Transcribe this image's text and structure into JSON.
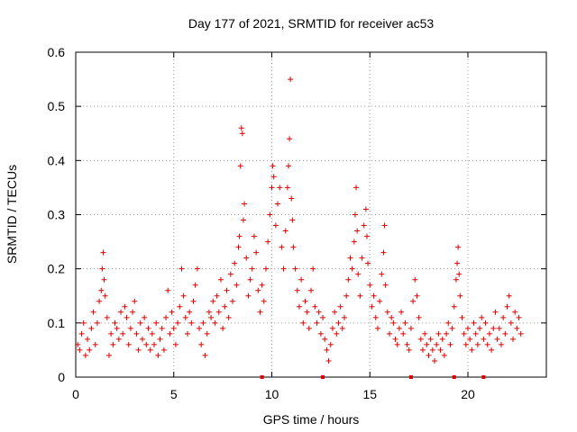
{
  "chart_data": {
    "type": "scatter",
    "title": "Day 177 of 2021, SRMTID for receiver ac53",
    "xlabel": "GPS time / hours",
    "ylabel": "SRMTID / TECUs",
    "xlim": [
      0,
      24
    ],
    "ylim": [
      0,
      0.6
    ],
    "xticks": [
      0,
      5,
      10,
      15,
      20
    ],
    "yticks": [
      0,
      0.1,
      0.2,
      0.3,
      0.4,
      0.5,
      0.6
    ],
    "xtick_labels": [
      "0",
      "5",
      "10",
      "15",
      "20"
    ],
    "ytick_labels": [
      "0",
      "0.1",
      "0.2",
      "0.3",
      "0.4",
      "0.5",
      "0.6"
    ],
    "grid": true,
    "marker": "+",
    "color": "#e00000",
    "series": [
      {
        "name": "SRMTID",
        "points": [
          [
            0.1,
            0.06
          ],
          [
            0.2,
            0.05
          ],
          [
            0.3,
            0.08
          ],
          [
            0.4,
            0.1
          ],
          [
            0.5,
            0.04
          ],
          [
            0.6,
            0.07
          ],
          [
            0.7,
            0.05
          ],
          [
            0.8,
            0.09
          ],
          [
            0.9,
            0.12
          ],
          [
            1.0,
            0.06
          ],
          [
            1.1,
            0.1
          ],
          [
            1.2,
            0.14
          ],
          [
            1.3,
            0.16
          ],
          [
            1.35,
            0.2
          ],
          [
            1.4,
            0.23
          ],
          [
            1.45,
            0.18
          ],
          [
            1.5,
            0.15
          ],
          [
            1.6,
            0.11
          ],
          [
            1.7,
            0.04
          ],
          [
            1.8,
            0.08
          ],
          [
            1.9,
            0.06
          ],
          [
            2.0,
            0.1
          ],
          [
            2.1,
            0.09
          ],
          [
            2.2,
            0.07
          ],
          [
            2.3,
            0.12
          ],
          [
            2.4,
            0.08
          ],
          [
            2.5,
            0.13
          ],
          [
            2.6,
            0.11
          ],
          [
            2.7,
            0.06
          ],
          [
            2.8,
            0.09
          ],
          [
            2.9,
            0.12
          ],
          [
            3.0,
            0.14
          ],
          [
            3.1,
            0.08
          ],
          [
            3.2,
            0.05
          ],
          [
            3.3,
            0.1
          ],
          [
            3.4,
            0.07
          ],
          [
            3.5,
            0.11
          ],
          [
            3.6,
            0.06
          ],
          [
            3.7,
            0.09
          ],
          [
            3.8,
            0.05
          ],
          [
            3.9,
            0.08
          ],
          [
            4.0,
            0.06
          ],
          [
            4.1,
            0.1
          ],
          [
            4.2,
            0.04
          ],
          [
            4.3,
            0.07
          ],
          [
            4.4,
            0.09
          ],
          [
            4.5,
            0.05
          ],
          [
            4.6,
            0.11
          ],
          [
            4.7,
            0.16
          ],
          [
            4.8,
            0.08
          ],
          [
            4.9,
            0.12
          ],
          [
            5.0,
            0.09
          ],
          [
            5.1,
            0.06
          ],
          [
            5.2,
            0.1
          ],
          [
            5.3,
            0.13
          ],
          [
            5.4,
            0.2
          ],
          [
            5.5,
            0.15
          ],
          [
            5.6,
            0.11
          ],
          [
            5.7,
            0.08
          ],
          [
            5.8,
            0.12
          ],
          [
            5.9,
            0.1
          ],
          [
            6.0,
            0.14
          ],
          [
            6.1,
            0.17
          ],
          [
            6.2,
            0.2
          ],
          [
            6.3,
            0.09
          ],
          [
            6.4,
            0.06
          ],
          [
            6.5,
            0.1
          ],
          [
            6.6,
            0.04
          ],
          [
            6.7,
            0.08
          ],
          [
            6.8,
            0.12
          ],
          [
            6.9,
            0.11
          ],
          [
            7.0,
            0.14
          ],
          [
            7.1,
            0.1
          ],
          [
            7.2,
            0.15
          ],
          [
            7.3,
            0.12
          ],
          [
            7.4,
            0.18
          ],
          [
            7.5,
            0.09
          ],
          [
            7.6,
            0.13
          ],
          [
            7.7,
            0.16
          ],
          [
            7.8,
            0.11
          ],
          [
            7.9,
            0.19
          ],
          [
            8.0,
            0.14
          ],
          [
            8.1,
            0.21
          ],
          [
            8.2,
            0.17
          ],
          [
            8.3,
            0.24
          ],
          [
            8.35,
            0.26
          ],
          [
            8.4,
            0.39
          ],
          [
            8.45,
            0.46
          ],
          [
            8.5,
            0.45
          ],
          [
            8.55,
            0.29
          ],
          [
            8.6,
            0.32
          ],
          [
            8.7,
            0.22
          ],
          [
            8.8,
            0.15
          ],
          [
            8.9,
            0.18
          ],
          [
            9.0,
            0.2
          ],
          [
            9.1,
            0.26
          ],
          [
            9.2,
            0.23
          ],
          [
            9.3,
            0.16
          ],
          [
            9.4,
            0.12
          ],
          [
            9.5,
            0.17
          ],
          [
            9.6,
            0.14
          ],
          [
            9.7,
            0.2
          ],
          [
            9.8,
            0.25
          ],
          [
            9.9,
            0.3
          ],
          [
            10.0,
            0.35
          ],
          [
            10.05,
            0.39
          ],
          [
            10.1,
            0.37
          ],
          [
            10.2,
            0.28
          ],
          [
            10.3,
            0.32
          ],
          [
            10.4,
            0.35
          ],
          [
            10.5,
            0.24
          ],
          [
            10.6,
            0.2
          ],
          [
            10.7,
            0.27
          ],
          [
            10.8,
            0.35
          ],
          [
            10.85,
            0.39
          ],
          [
            10.9,
            0.44
          ],
          [
            10.95,
            0.55
          ],
          [
            11.0,
            0.33
          ],
          [
            11.05,
            0.29
          ],
          [
            11.1,
            0.24
          ],
          [
            11.2,
            0.2
          ],
          [
            11.3,
            0.16
          ],
          [
            11.4,
            0.13
          ],
          [
            11.5,
            0.18
          ],
          [
            11.6,
            0.1
          ],
          [
            11.7,
            0.14
          ],
          [
            11.8,
            0.12
          ],
          [
            11.9,
            0.09
          ],
          [
            12.0,
            0.16
          ],
          [
            12.1,
            0.2
          ],
          [
            12.2,
            0.13
          ],
          [
            12.3,
            0.1
          ],
          [
            12.4,
            0.12
          ],
          [
            12.5,
            0.08
          ],
          [
            12.6,
            0.11
          ],
          [
            12.7,
            0.07
          ],
          [
            12.8,
            0.05
          ],
          [
            12.9,
            0.03
          ],
          [
            13.0,
            0.06
          ],
          [
            13.1,
            0.09
          ],
          [
            13.2,
            0.12
          ],
          [
            13.3,
            0.08
          ],
          [
            13.4,
            0.1
          ],
          [
            13.5,
            0.13
          ],
          [
            13.6,
            0.09
          ],
          [
            13.7,
            0.11
          ],
          [
            13.8,
            0.15
          ],
          [
            13.9,
            0.18
          ],
          [
            14.0,
            0.22
          ],
          [
            14.1,
            0.2
          ],
          [
            14.2,
            0.25
          ],
          [
            14.25,
            0.3
          ],
          [
            14.3,
            0.35
          ],
          [
            14.35,
            0.27
          ],
          [
            14.4,
            0.19
          ],
          [
            14.5,
            0.15
          ],
          [
            14.6,
            0.22
          ],
          [
            14.7,
            0.28
          ],
          [
            14.8,
            0.31
          ],
          [
            14.85,
            0.26
          ],
          [
            14.9,
            0.21
          ],
          [
            15.0,
            0.17
          ],
          [
            15.1,
            0.13
          ],
          [
            15.2,
            0.15
          ],
          [
            15.3,
            0.11
          ],
          [
            15.4,
            0.09
          ],
          [
            15.5,
            0.14
          ],
          [
            15.6,
            0.19
          ],
          [
            15.7,
            0.23
          ],
          [
            15.75,
            0.28
          ],
          [
            15.8,
            0.17
          ],
          [
            15.9,
            0.12
          ],
          [
            16.0,
            0.08
          ],
          [
            16.1,
            0.11
          ],
          [
            16.2,
            0.1
          ],
          [
            16.3,
            0.07
          ],
          [
            16.4,
            0.06
          ],
          [
            16.5,
            0.09
          ],
          [
            16.6,
            0.12
          ],
          [
            16.7,
            0.08
          ],
          [
            16.8,
            0.1
          ],
          [
            16.9,
            0.06
          ],
          [
            17.0,
            0.05
          ],
          [
            17.1,
            0.09
          ],
          [
            17.2,
            0.14
          ],
          [
            17.3,
            0.18
          ],
          [
            17.4,
            0.15
          ],
          [
            17.5,
            0.11
          ],
          [
            17.6,
            0.07
          ],
          [
            17.7,
            0.05
          ],
          [
            17.8,
            0.08
          ],
          [
            17.9,
            0.06
          ],
          [
            18.0,
            0.04
          ],
          [
            18.1,
            0.07
          ],
          [
            18.2,
            0.05
          ],
          [
            18.3,
            0.03
          ],
          [
            18.4,
            0.06
          ],
          [
            18.5,
            0.08
          ],
          [
            18.6,
            0.05
          ],
          [
            18.7,
            0.07
          ],
          [
            18.8,
            0.04
          ],
          [
            18.9,
            0.08
          ],
          [
            19.0,
            0.1
          ],
          [
            19.1,
            0.06
          ],
          [
            19.2,
            0.09
          ],
          [
            19.3,
            0.13
          ],
          [
            19.4,
            0.18
          ],
          [
            19.45,
            0.21
          ],
          [
            19.5,
            0.24
          ],
          [
            19.55,
            0.19
          ],
          [
            19.6,
            0.15
          ],
          [
            19.7,
            0.11
          ],
          [
            19.8,
            0.08
          ],
          [
            19.9,
            0.06
          ],
          [
            20.0,
            0.09
          ],
          [
            20.1,
            0.07
          ],
          [
            20.2,
            0.05
          ],
          [
            20.3,
            0.1
          ],
          [
            20.4,
            0.08
          ],
          [
            20.5,
            0.06
          ],
          [
            20.6,
            0.09
          ],
          [
            20.7,
            0.11
          ],
          [
            20.8,
            0.07
          ],
          [
            20.9,
            0.1
          ],
          [
            21.0,
            0.06
          ],
          [
            21.1,
            0.08
          ],
          [
            21.2,
            0.05
          ],
          [
            21.3,
            0.09
          ],
          [
            21.4,
            0.12
          ],
          [
            21.5,
            0.07
          ],
          [
            21.6,
            0.09
          ],
          [
            21.7,
            0.06
          ],
          [
            21.8,
            0.11
          ],
          [
            21.9,
            0.08
          ],
          [
            22.0,
            0.13
          ],
          [
            22.1,
            0.15
          ],
          [
            22.2,
            0.1
          ],
          [
            22.3,
            0.07
          ],
          [
            22.4,
            0.12
          ],
          [
            22.5,
            0.09
          ],
          [
            22.6,
            0.11
          ],
          [
            22.7,
            0.08
          ]
        ]
      }
    ],
    "x_markers": [
      9.5,
      12.6,
      17.1,
      19.3,
      20.8
    ]
  }
}
